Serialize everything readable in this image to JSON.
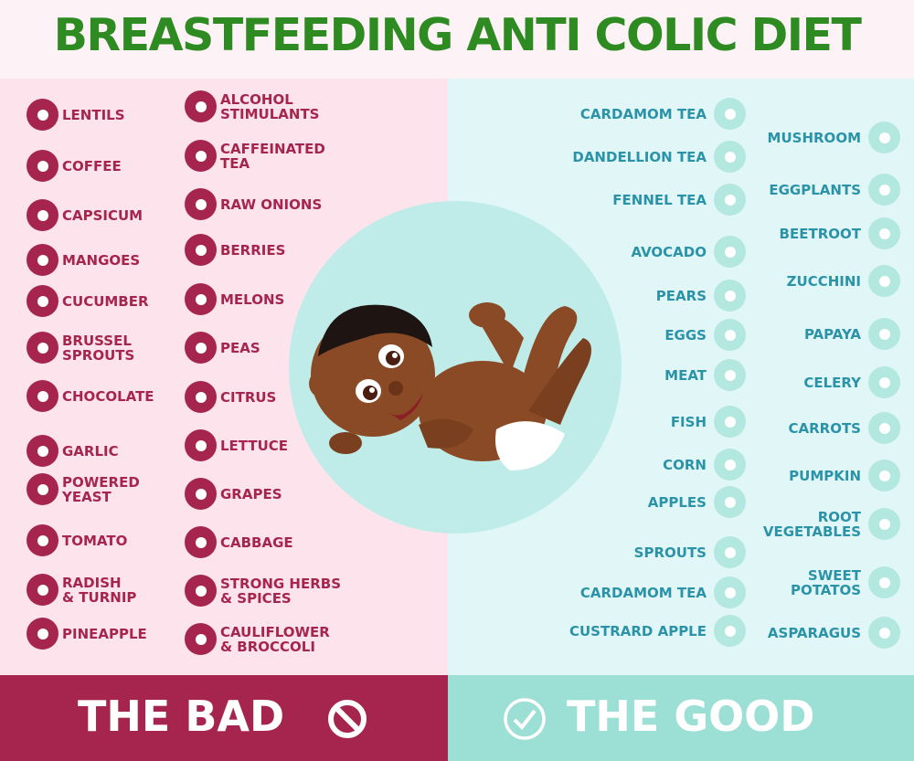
{
  "title": "BREASTFEEDING ANTI COLIC DIET",
  "bad_footer": "THE BAD",
  "good_footer": "THE GOOD",
  "colors": {
    "bad": "#a5254e",
    "good": "#2a93a8",
    "title": "#2e8b22"
  },
  "bad_col1": [
    {
      "label": "LENTILS",
      "icon": "lentils-icon"
    },
    {
      "label": "COFFEE",
      "icon": "coffee-bean-icon"
    },
    {
      "label": "CAPSICUM",
      "icon": "capsicum-icon"
    },
    {
      "label": "MANGOES",
      "icon": "mango-icon"
    },
    {
      "label": "CUCUMBER",
      "icon": "cucumber-icon"
    },
    {
      "label": "BRUSSEL\nSPROUTS",
      "icon": "brussel-sprouts-icon"
    },
    {
      "label": "CHOCOLATE",
      "icon": "chocolate-icon"
    },
    {
      "label": "GARLIC",
      "icon": "garlic-icon"
    },
    {
      "label": "POWERED\nYEAST",
      "icon": "yeast-icon"
    },
    {
      "label": "TOMATO",
      "icon": "tomato-icon"
    },
    {
      "label": "RADISH\n& TURNIP",
      "icon": "radish-icon"
    },
    {
      "label": "PINEAPPLE",
      "icon": "pineapple-icon"
    }
  ],
  "bad_col2": [
    {
      "label": "ALCOHOL\nSTIMULANTS",
      "icon": "cocktail-icon"
    },
    {
      "label": "CAFFEINATED\nTEA",
      "icon": "tea-cup-icon"
    },
    {
      "label": "RAW ONIONS",
      "icon": "onion-icon"
    },
    {
      "label": "BERRIES",
      "icon": "berries-icon"
    },
    {
      "label": "MELONS",
      "icon": "melon-icon"
    },
    {
      "label": "PEAS",
      "icon": "peas-icon"
    },
    {
      "label": "CITRUS",
      "icon": "citrus-icon"
    },
    {
      "label": "LETTUCE",
      "icon": "lettuce-icon"
    },
    {
      "label": "GRAPES",
      "icon": "grapes-icon"
    },
    {
      "label": "CABBAGE",
      "icon": "cabbage-icon"
    },
    {
      "label": "STRONG HERBS\n& SPICES",
      "icon": "herbs-icon"
    },
    {
      "label": "CAULIFLOWER\n& BROCCOLI",
      "icon": "broccoli-icon"
    }
  ],
  "good_col1": [
    {
      "label": "CARDAMOM TEA",
      "icon": "flower-icon"
    },
    {
      "label": "DANDELLION TEA",
      "icon": "dandelion-icon"
    },
    {
      "label": "FENNEL TEA",
      "icon": "fennel-icon"
    },
    {
      "label": "AVOCADO",
      "icon": "avocado-icon"
    },
    {
      "label": "PEARS",
      "icon": "pear-icon"
    },
    {
      "label": "EGGS",
      "icon": "egg-icon"
    },
    {
      "label": "MEAT",
      "icon": "steak-icon"
    },
    {
      "label": "FISH",
      "icon": "fish-icon"
    },
    {
      "label": "CORN",
      "icon": "corn-icon"
    },
    {
      "label": "APPLES",
      "icon": "apple-icon"
    },
    {
      "label": "SPROUTS",
      "icon": "sprout-icon"
    },
    {
      "label": "CARDAMOM TEA",
      "icon": "cardamom-icon"
    },
    {
      "label": "CUSTRARD APPLE",
      "icon": "custard-apple-icon"
    }
  ],
  "good_col2": [
    {
      "label": "MUSHROOM",
      "icon": "mushroom-icon"
    },
    {
      "label": "EGGPLANTS",
      "icon": "eggplant-icon"
    },
    {
      "label": "BEETROOT",
      "icon": "beetroot-icon"
    },
    {
      "label": "ZUCCHINI",
      "icon": "zucchini-icon"
    },
    {
      "label": "PAPAYA",
      "icon": "papaya-icon"
    },
    {
      "label": "CELERY",
      "icon": "celery-icon"
    },
    {
      "label": "CARROTS",
      "icon": "carrot-icon"
    },
    {
      "label": "PUMPKIN",
      "icon": "pumpkin-icon"
    },
    {
      "label": "ROOT\nVEGETABLES",
      "icon": "ginger-icon"
    },
    {
      "label": "SWEET\nPOTATOS",
      "icon": "sweet-potato-icon"
    },
    {
      "label": "ASPARAGUS",
      "icon": "asparagus-icon"
    }
  ]
}
